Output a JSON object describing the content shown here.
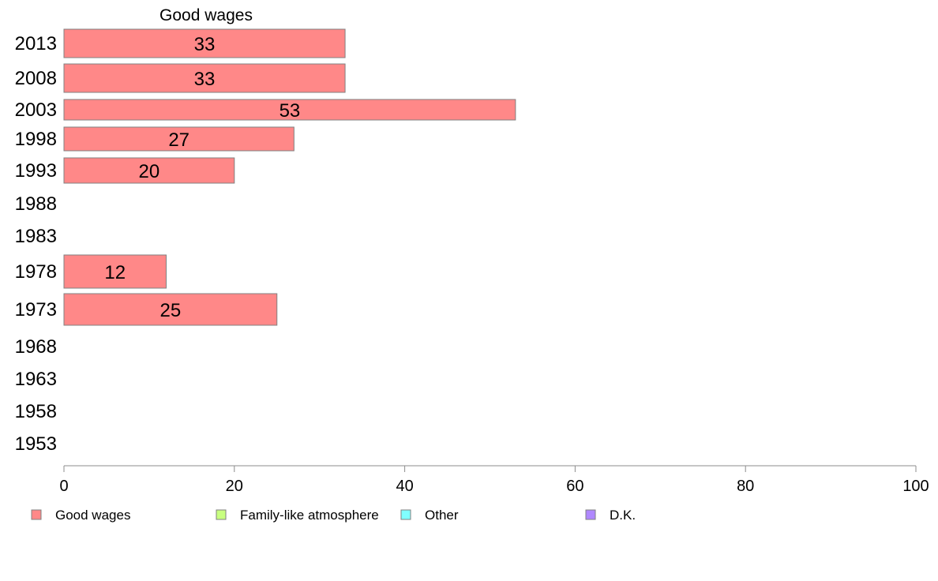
{
  "chart_data": {
    "type": "bar",
    "orientation": "horizontal",
    "title": "Good wages",
    "categories": [
      "2013",
      "2008",
      "2003",
      "1998",
      "1993",
      "1988",
      "1983",
      "1978",
      "1973",
      "1968",
      "1963",
      "1958",
      "1953"
    ],
    "series": [
      {
        "name": "Good wages",
        "color": "#ff8888",
        "values": [
          33,
          33,
          53,
          27,
          20,
          null,
          null,
          12,
          25,
          null,
          null,
          null,
          null
        ],
        "labels": [
          "33",
          "33",
          "53",
          "27",
          "20",
          "",
          "",
          "12",
          "25",
          "",
          "",
          "",
          ""
        ]
      }
    ],
    "xlim": [
      0,
      100
    ],
    "xticks": [
      "0",
      "20",
      "40",
      "60",
      "80",
      "100"
    ],
    "grid": false,
    "legend": {
      "position": "bottom",
      "entries": [
        {
          "label": "Good wages",
          "color": "#ff8888"
        },
        {
          "label": "Family-like atmosphere",
          "color": "#c8ff80"
        },
        {
          "label": "Other",
          "color": "#80ffff"
        },
        {
          "label": "D.K.",
          "color": "#b088ff"
        }
      ]
    }
  }
}
